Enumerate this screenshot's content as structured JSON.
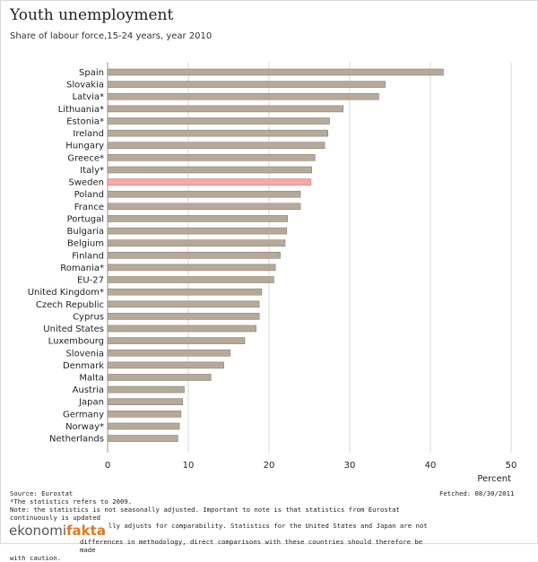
{
  "header": {
    "title": "Youth unemployment",
    "subtitle": "Share of labour force,15-24 years, year 2010"
  },
  "footer": {
    "source": "Source: Eurostat",
    "note_1": "*The statistics refers to 2009.",
    "note_2": "Note: the statistics is not seasonally adjusted. Important to note is that statistics from Eurostat continuously is updated",
    "note_3": "and that Eurostat marginally adjusts for comparability. Statistics for the United States and Japan are not adjusted by",
    "note_4": "differences in methodology, direct comparisons with these countries should therefore be made",
    "note_5": "with caution.",
    "fetched": "Fetched: 08/30/2011"
  },
  "logo": {
    "part1": "ekonomi",
    "part2": "fakta"
  },
  "colors": {
    "bar": "#b5aa9a",
    "bar_border": "#8b8070",
    "highlight": "#f2aaa6",
    "highlight_border": "#c47a77",
    "grid": "#d8d8d8",
    "axis": "#999999"
  },
  "chart_data": {
    "type": "bar",
    "orientation": "horizontal",
    "title": "Youth unemployment",
    "subtitle": "Share of labour force,15-24 years, year 2010",
    "xlabel": "Percent",
    "ylabel": "",
    "xlim": [
      0,
      50
    ],
    "xticks": [
      0,
      10,
      20,
      30,
      40,
      50
    ],
    "grid": true,
    "highlight": "Sweden",
    "categories": [
      "Spain",
      "Slovakia",
      "Latvia*",
      "Lithuania*",
      "Estonia*",
      "Ireland",
      "Hungary",
      "Greece*",
      "Italy*",
      "Sweden",
      "Poland",
      "France",
      "Portugal",
      "Bulgaria",
      "Belgium",
      "Finland",
      "Romania*",
      "EU-27",
      "United Kingdom*",
      "Czech Republic",
      "Cyprus",
      "United States",
      "Luxembourg",
      "Slovenia",
      "Denmark",
      "Malta",
      "Austria",
      "Japan",
      "Germany",
      "Norway*",
      "Netherlands"
    ],
    "values": [
      41.6,
      34.4,
      33.6,
      29.2,
      27.5,
      27.3,
      26.9,
      25.7,
      25.3,
      25.2,
      23.9,
      23.9,
      22.3,
      22.2,
      22.0,
      21.4,
      20.8,
      20.6,
      19.1,
      18.8,
      18.8,
      18.4,
      17.0,
      15.2,
      14.4,
      12.8,
      9.5,
      9.3,
      9.1,
      8.9,
      8.7
    ]
  }
}
